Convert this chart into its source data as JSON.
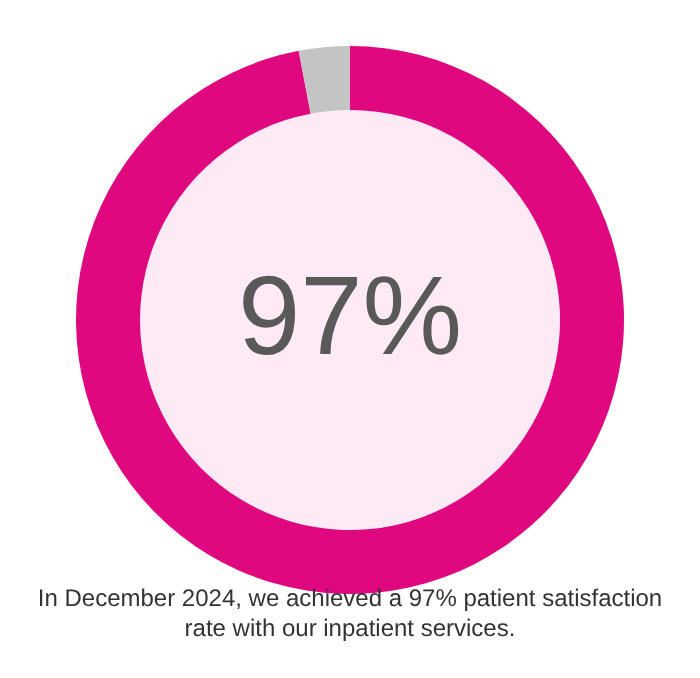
{
  "chart_data": {
    "type": "donut",
    "categories": [
      null,
      null
    ],
    "values": [
      97,
      3
    ],
    "colors": [
      "#e0087f",
      "#c4c4c4"
    ],
    "annotations": [
      "97%",
      "In December 2024, we achieved a 97% patient satisfaction rate with our inpatient services."
    ]
  }
}
